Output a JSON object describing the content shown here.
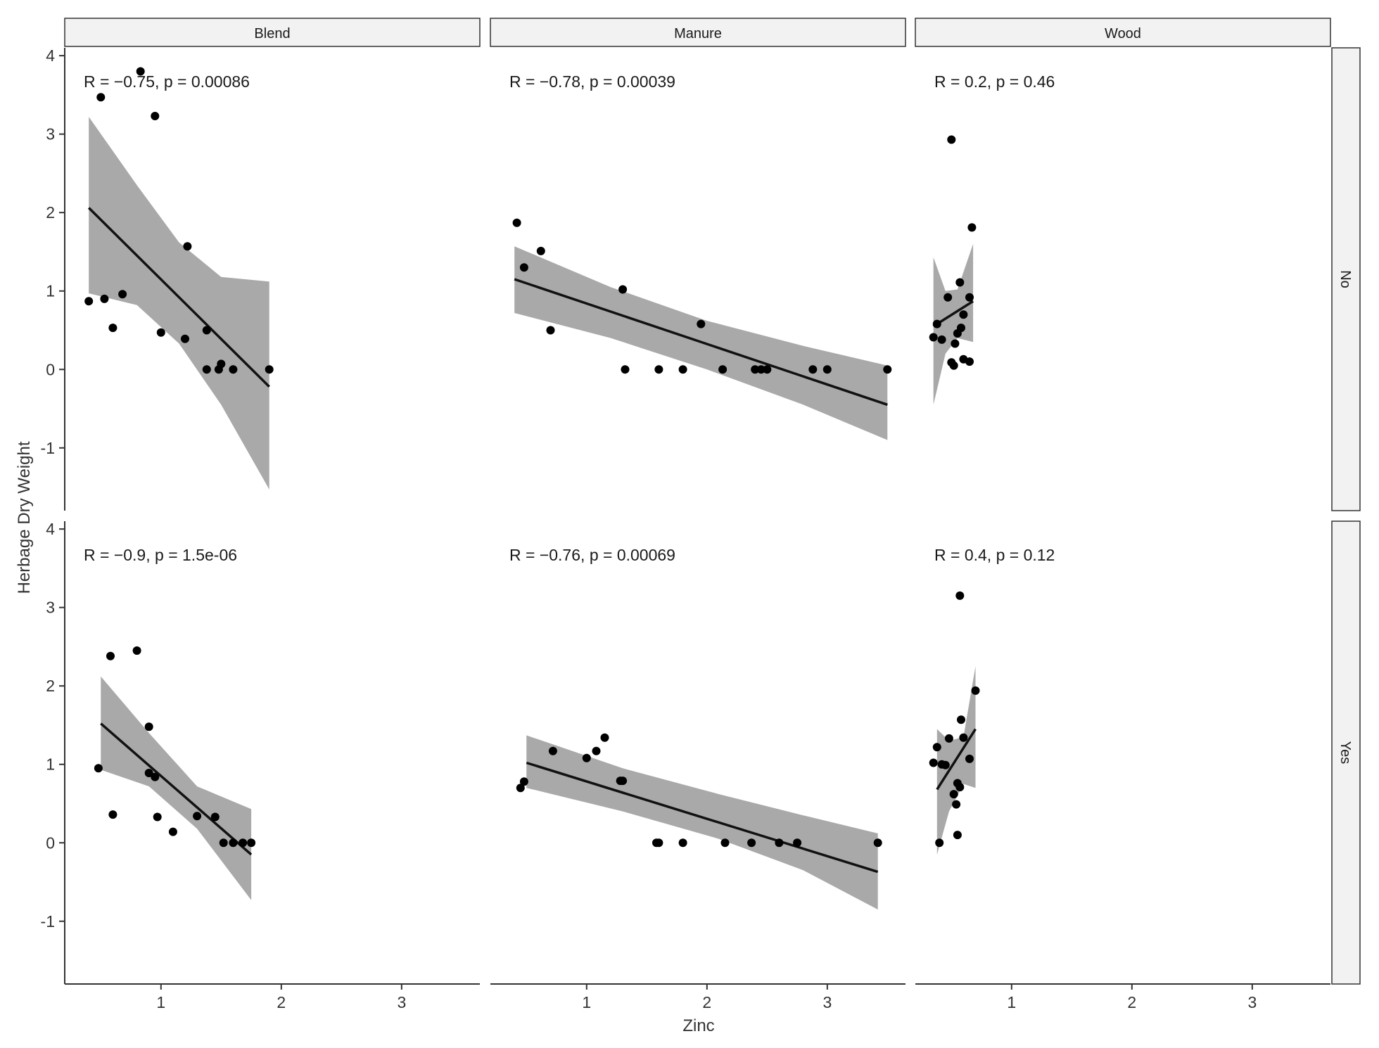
{
  "chart_data": {
    "type": "scatter",
    "xlabel": "Zinc",
    "ylabel": "Herbage Dry Weight",
    "xlim": [
      0.2,
      3.65
    ],
    "ylim": [
      -1.8,
      4.1
    ],
    "x_ticks": [
      1,
      2,
      3
    ],
    "y_ticks": [
      -1,
      0,
      1,
      2,
      3,
      4
    ],
    "col_labels": [
      "Blend",
      "Manure",
      "Wood"
    ],
    "row_labels": [
      "No",
      "Yes"
    ],
    "colors": {
      "point": "#000000",
      "ribbon": "#a9a9a9",
      "line": "#111111",
      "strip": "#f2f2f2"
    },
    "panels": [
      {
        "col": "Blend",
        "row": "No",
        "stat": {
          "r_label": "R = −0.75",
          "p_label": "p = 0.00086"
        },
        "fit": {
          "x": [
            0.4,
            1.9
          ],
          "y": [
            2.06,
            -0.22
          ]
        },
        "band": {
          "x": [
            0.4,
            0.8,
            1.15,
            1.5,
            1.9
          ],
          "upper": [
            3.22,
            2.35,
            1.62,
            1.18,
            1.12
          ],
          "lower": [
            0.97,
            0.82,
            0.33,
            -0.45,
            -1.53
          ]
        },
        "points": [
          [
            0.4,
            0.87
          ],
          [
            0.5,
            3.47
          ],
          [
            0.53,
            0.9
          ],
          [
            0.6,
            0.53
          ],
          [
            0.68,
            0.96
          ],
          [
            0.83,
            3.8
          ],
          [
            0.95,
            3.23
          ],
          [
            1.0,
            0.47
          ],
          [
            1.2,
            0.39
          ],
          [
            1.22,
            1.57
          ],
          [
            1.38,
            0.5
          ],
          [
            1.38,
            0.0
          ],
          [
            1.48,
            0.0
          ],
          [
            1.5,
            0.07
          ],
          [
            1.6,
            0.0
          ],
          [
            1.9,
            0.0
          ]
        ]
      },
      {
        "col": "Manure",
        "row": "No",
        "stat": {
          "r_label": "R = −0.78",
          "p_label": "p = 0.00039"
        },
        "fit": {
          "x": [
            0.4,
            3.5
          ],
          "y": [
            1.15,
            -0.45
          ]
        },
        "band": {
          "x": [
            0.4,
            1.2,
            2.0,
            2.8,
            3.5
          ],
          "upper": [
            1.57,
            1.05,
            0.62,
            0.3,
            0.05
          ],
          "lower": [
            0.72,
            0.4,
            0.0,
            -0.45,
            -0.9
          ]
        },
        "points": [
          [
            0.42,
            1.87
          ],
          [
            0.48,
            1.3
          ],
          [
            0.62,
            1.51
          ],
          [
            0.7,
            0.5
          ],
          [
            1.3,
            1.02
          ],
          [
            1.32,
            0.0
          ],
          [
            1.6,
            0.0
          ],
          [
            1.8,
            0.0
          ],
          [
            1.95,
            0.58
          ],
          [
            2.13,
            0.0
          ],
          [
            2.4,
            0.0
          ],
          [
            2.45,
            0.0
          ],
          [
            2.5,
            0.0
          ],
          [
            2.88,
            0.0
          ],
          [
            3.0,
            0.0
          ],
          [
            3.5,
            0.0
          ]
        ]
      },
      {
        "col": "Wood",
        "row": "No",
        "stat": {
          "r_label": "R = 0.2",
          "p_label": "p = 0.46"
        },
        "fit": {
          "x": [
            0.35,
            0.68
          ],
          "y": [
            0.55,
            0.87
          ]
        },
        "band": {
          "x": [
            0.35,
            0.45,
            0.55,
            0.68
          ],
          "upper": [
            1.43,
            1.0,
            1.02,
            1.6
          ],
          "lower": [
            -0.45,
            0.2,
            0.4,
            0.35
          ]
        },
        "points": [
          [
            0.35,
            0.41
          ],
          [
            0.38,
            0.58
          ],
          [
            0.42,
            0.38
          ],
          [
            0.47,
            0.92
          ],
          [
            0.5,
            0.09
          ],
          [
            0.5,
            2.93
          ],
          [
            0.52,
            0.05
          ],
          [
            0.53,
            0.33
          ],
          [
            0.55,
            0.46
          ],
          [
            0.57,
            1.11
          ],
          [
            0.58,
            0.53
          ],
          [
            0.6,
            0.7
          ],
          [
            0.6,
            0.13
          ],
          [
            0.65,
            0.1
          ],
          [
            0.65,
            0.92
          ],
          [
            0.67,
            1.81
          ]
        ]
      },
      {
        "col": "Blend",
        "row": "Yes",
        "stat": {
          "r_label": "R = −0.9",
          "p_label": "p = 1.5e-06"
        },
        "fit": {
          "x": [
            0.5,
            1.75
          ],
          "y": [
            1.52,
            -0.15
          ]
        },
        "band": {
          "x": [
            0.5,
            0.9,
            1.3,
            1.75
          ],
          "upper": [
            2.12,
            1.4,
            0.72,
            0.43
          ],
          "lower": [
            0.93,
            0.72,
            0.18,
            -0.73
          ]
        },
        "points": [
          [
            0.48,
            0.95
          ],
          [
            0.58,
            2.38
          ],
          [
            0.6,
            0.36
          ],
          [
            0.8,
            2.45
          ],
          [
            0.9,
            1.48
          ],
          [
            0.9,
            0.89
          ],
          [
            0.95,
            0.84
          ],
          [
            0.97,
            0.33
          ],
          [
            1.1,
            0.14
          ],
          [
            1.3,
            0.34
          ],
          [
            1.45,
            0.33
          ],
          [
            1.52,
            0.0
          ],
          [
            1.6,
            0.0
          ],
          [
            1.68,
            0.0
          ],
          [
            1.75,
            0.0
          ]
        ]
      },
      {
        "col": "Manure",
        "row": "Yes",
        "stat": {
          "r_label": "R = −0.76",
          "p_label": "p = 0.00069"
        },
        "fit": {
          "x": [
            0.5,
            3.42
          ],
          "y": [
            1.02,
            -0.37
          ]
        },
        "band": {
          "x": [
            0.5,
            1.3,
            2.1,
            2.8,
            3.42
          ],
          "upper": [
            1.37,
            0.95,
            0.62,
            0.35,
            0.12
          ],
          "lower": [
            0.7,
            0.4,
            0.05,
            -0.35,
            -0.85
          ]
        },
        "points": [
          [
            0.45,
            0.7
          ],
          [
            0.48,
            0.78
          ],
          [
            0.72,
            1.17
          ],
          [
            1.0,
            1.08
          ],
          [
            1.08,
            1.17
          ],
          [
            1.15,
            1.34
          ],
          [
            1.28,
            0.79
          ],
          [
            1.3,
            0.79
          ],
          [
            1.58,
            0.0
          ],
          [
            1.6,
            0.0
          ],
          [
            1.8,
            0.0
          ],
          [
            2.15,
            0.0
          ],
          [
            2.37,
            0.0
          ],
          [
            2.6,
            0.0
          ],
          [
            2.75,
            0.0
          ],
          [
            3.42,
            0.0
          ]
        ]
      },
      {
        "col": "Wood",
        "row": "Yes",
        "stat": {
          "r_label": "R = 0.4",
          "p_label": "p = 0.12"
        },
        "fit": {
          "x": [
            0.38,
            0.7
          ],
          "y": [
            0.68,
            1.45
          ]
        },
        "band": {
          "x": [
            0.38,
            0.48,
            0.6,
            0.7
          ],
          "upper": [
            1.45,
            1.3,
            1.35,
            2.25
          ],
          "lower": [
            -0.15,
            0.4,
            0.75,
            0.7
          ]
        },
        "points": [
          [
            0.35,
            1.02
          ],
          [
            0.38,
            1.22
          ],
          [
            0.4,
            0.0
          ],
          [
            0.42,
            1.0
          ],
          [
            0.45,
            0.99
          ],
          [
            0.48,
            1.33
          ],
          [
            0.52,
            0.62
          ],
          [
            0.54,
            0.49
          ],
          [
            0.55,
            0.1
          ],
          [
            0.55,
            0.76
          ],
          [
            0.57,
            0.71
          ],
          [
            0.57,
            3.15
          ],
          [
            0.58,
            1.57
          ],
          [
            0.6,
            1.34
          ],
          [
            0.65,
            1.07
          ],
          [
            0.7,
            1.94
          ]
        ]
      }
    ]
  }
}
